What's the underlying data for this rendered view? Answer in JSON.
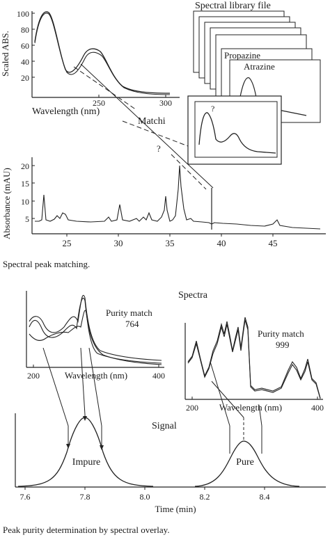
{
  "top": {
    "library_title": "Spectral library file",
    "library_cards": [
      "Propazine",
      "Atrazine"
    ],
    "match_label": "Matchi",
    "question_mark": "?",
    "spectrum_panel": {
      "ylabel": "Scaled ABS.",
      "xlabel": "Wavelength (nm)",
      "y_ticks": [
        "100",
        "80",
        "60",
        "40",
        "20"
      ],
      "x_ticks": [
        "250",
        "300"
      ]
    },
    "chromatogram": {
      "ylabel": "Absorbance (mAU)",
      "y_ticks": [
        "20",
        "15",
        "10",
        "5"
      ],
      "x_ticks": [
        "25",
        "30",
        "35",
        "40",
        "45"
      ]
    },
    "caption": "Spectral peak matching."
  },
  "bottom": {
    "spectra_title": "Spectra",
    "left_panel": {
      "purity_label": "Purity match",
      "purity_value": "764",
      "xlabel": "Wavelength (nm)",
      "x_ticks": [
        "200",
        "400"
      ]
    },
    "right_panel": {
      "purity_label": "Purity match",
      "purity_value": "999",
      "xlabel": "Wavelength (nm)",
      "x_ticks": [
        "200",
        "400"
      ]
    },
    "signal_label": "Signal",
    "peaks": [
      {
        "label": "Impure",
        "time": 7.8
      },
      {
        "label": "Pure",
        "time": 8.31
      }
    ],
    "time_axis": {
      "label": "Time (min)",
      "ticks": [
        "7.6",
        "7.8",
        "8.0",
        "8.2",
        "8.4"
      ]
    },
    "caption": "Peak purity determination by spectral overlay."
  }
}
